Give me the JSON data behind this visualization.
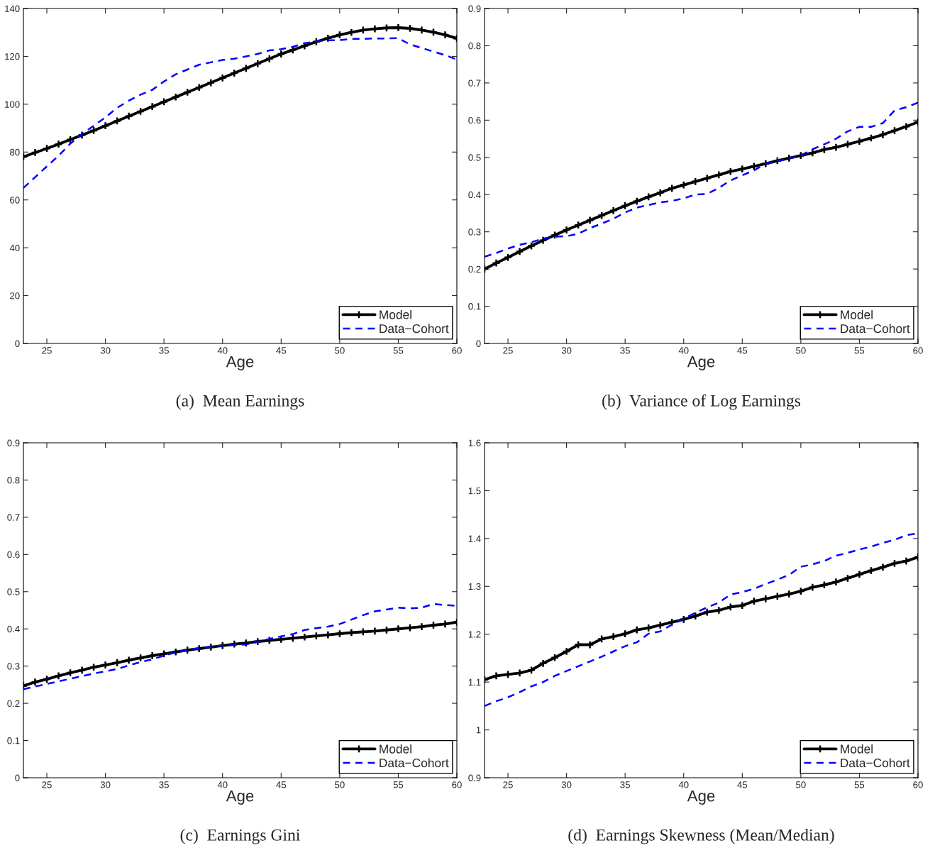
{
  "chart_data": [
    {
      "type": "line",
      "title": "(a)  Mean Earnings",
      "xlabel": "Age",
      "x": [
        23,
        24,
        25,
        26,
        27,
        28,
        29,
        30,
        31,
        32,
        33,
        34,
        35,
        36,
        37,
        38,
        39,
        40,
        41,
        42,
        43,
        44,
        45,
        46,
        47,
        48,
        49,
        50,
        51,
        52,
        53,
        54,
        55,
        56,
        57,
        58,
        59,
        60
      ],
      "xlim": [
        23,
        60
      ],
      "xticks": [
        25,
        30,
        35,
        40,
        45,
        50,
        55,
        60
      ],
      "ylim": [
        0,
        140
      ],
      "yticks": [
        0,
        20,
        40,
        60,
        80,
        100,
        120,
        140
      ],
      "legend": "bottom right",
      "grid": false,
      "series": [
        {
          "name": "Model",
          "color": "#000000",
          "marker": "cross",
          "line_style": "solid",
          "values": [
            78,
            79.8,
            81.5,
            83.3,
            85.2,
            87.1,
            89,
            91,
            93,
            95,
            97,
            99,
            101,
            103,
            105,
            107,
            109,
            111,
            113,
            115,
            117,
            119,
            121,
            122.7,
            124.4,
            126.1,
            127.6,
            129,
            130,
            131,
            131.5,
            131.9,
            132,
            131.7,
            131,
            130.1,
            129,
            127.5
          ]
        },
        {
          "name": "Data−Cohort",
          "color": "#0000ff",
          "marker": "none",
          "line_style": "dashed",
          "values": [
            65,
            69.5,
            74,
            78.5,
            83.5,
            87.5,
            91,
            94.5,
            98.5,
            101.5,
            104,
            106,
            109.5,
            112.5,
            114.5,
            116.5,
            117.5,
            118.5,
            119,
            120,
            121,
            122.5,
            123,
            124,
            125.5,
            126.3,
            126.7,
            126.8,
            127.3,
            127.3,
            127.5,
            127.5,
            127.6,
            125,
            123.5,
            122,
            120.5,
            118.7
          ]
        }
      ]
    },
    {
      "type": "line",
      "title": "(b)  Variance of Log Earnings",
      "xlabel": "Age",
      "x": [
        23,
        24,
        25,
        26,
        27,
        28,
        29,
        30,
        31,
        32,
        33,
        34,
        35,
        36,
        37,
        38,
        39,
        40,
        41,
        42,
        43,
        44,
        45,
        46,
        47,
        48,
        49,
        50,
        51,
        52,
        53,
        54,
        55,
        56,
        57,
        58,
        59,
        60
      ],
      "xlim": [
        23,
        60
      ],
      "xticks": [
        25,
        30,
        35,
        40,
        45,
        50,
        55,
        60
      ],
      "ylim": [
        0,
        0.9
      ],
      "yticks": [
        0,
        0.1,
        0.2,
        0.3,
        0.4,
        0.5,
        0.6,
        0.7,
        0.8,
        0.9
      ],
      "legend": "bottom right",
      "grid": false,
      "series": [
        {
          "name": "Model",
          "color": "#000000",
          "marker": "cross",
          "line_style": "solid",
          "values": [
            0.2,
            0.216,
            0.231,
            0.247,
            0.262,
            0.277,
            0.291,
            0.305,
            0.318,
            0.331,
            0.344,
            0.357,
            0.37,
            0.382,
            0.394,
            0.405,
            0.417,
            0.426,
            0.435,
            0.444,
            0.453,
            0.462,
            0.469,
            0.476,
            0.483,
            0.491,
            0.498,
            0.505,
            0.512,
            0.521,
            0.527,
            0.535,
            0.543,
            0.552,
            0.561,
            0.572,
            0.583,
            0.595
          ]
        },
        {
          "name": "Data−Cohort",
          "color": "#0000ff",
          "marker": "none",
          "line_style": "dashed",
          "values": [
            0.233,
            0.243,
            0.255,
            0.265,
            0.272,
            0.282,
            0.287,
            0.288,
            0.295,
            0.31,
            0.322,
            0.335,
            0.352,
            0.365,
            0.372,
            0.379,
            0.383,
            0.39,
            0.4,
            0.402,
            0.418,
            0.438,
            0.452,
            0.465,
            0.483,
            0.49,
            0.497,
            0.505,
            0.522,
            0.535,
            0.55,
            0.57,
            0.582,
            0.582,
            0.592,
            0.626,
            0.635,
            0.647
          ]
        }
      ]
    },
    {
      "type": "line",
      "title": "(c)  Earnings Gini",
      "xlabel": "Age",
      "x": [
        23,
        24,
        25,
        26,
        27,
        28,
        29,
        30,
        31,
        32,
        33,
        34,
        35,
        36,
        37,
        38,
        39,
        40,
        41,
        42,
        43,
        44,
        45,
        46,
        47,
        48,
        49,
        50,
        51,
        52,
        53,
        54,
        55,
        56,
        57,
        58,
        59,
        60
      ],
      "xlim": [
        23,
        60
      ],
      "xticks": [
        25,
        30,
        35,
        40,
        45,
        50,
        55,
        60
      ],
      "ylim": [
        0,
        0.9
      ],
      "yticks": [
        0,
        0.1,
        0.2,
        0.3,
        0.4,
        0.5,
        0.6,
        0.7,
        0.8,
        0.9
      ],
      "legend": "bottom right",
      "grid": false,
      "series": [
        {
          "name": "Model",
          "color": "#000000",
          "marker": "cross",
          "line_style": "solid",
          "values": [
            0.247,
            0.257,
            0.265,
            0.274,
            0.282,
            0.289,
            0.297,
            0.303,
            0.309,
            0.316,
            0.322,
            0.328,
            0.333,
            0.338,
            0.343,
            0.347,
            0.351,
            0.355,
            0.359,
            0.362,
            0.366,
            0.369,
            0.372,
            0.375,
            0.378,
            0.381,
            0.384,
            0.387,
            0.39,
            0.392,
            0.394,
            0.397,
            0.4,
            0.403,
            0.406,
            0.41,
            0.413,
            0.418
          ]
        },
        {
          "name": "Data−Cohort",
          "color": "#0000ff",
          "marker": "none",
          "line_style": "dashed",
          "values": [
            0.238,
            0.245,
            0.252,
            0.259,
            0.266,
            0.273,
            0.28,
            0.286,
            0.292,
            0.302,
            0.311,
            0.318,
            0.328,
            0.337,
            0.343,
            0.348,
            0.352,
            0.355,
            0.357,
            0.358,
            0.365,
            0.373,
            0.38,
            0.386,
            0.397,
            0.402,
            0.406,
            0.413,
            0.425,
            0.437,
            0.447,
            0.452,
            0.457,
            0.455,
            0.457,
            0.467,
            0.464,
            0.462
          ]
        }
      ]
    },
    {
      "type": "line",
      "title": "(d)  Earnings Skewness (Mean/Median)",
      "xlabel": "Age",
      "x": [
        23,
        24,
        25,
        26,
        27,
        28,
        29,
        30,
        31,
        32,
        33,
        34,
        35,
        36,
        37,
        38,
        39,
        40,
        41,
        42,
        43,
        44,
        45,
        46,
        47,
        48,
        49,
        50,
        51,
        52,
        53,
        54,
        55,
        56,
        57,
        58,
        59,
        60
      ],
      "xlim": [
        23,
        60
      ],
      "xticks": [
        25,
        30,
        35,
        40,
        45,
        50,
        55,
        60
      ],
      "ylim": [
        0.9,
        1.6
      ],
      "yticks": [
        0.9,
        1,
        1.1,
        1.2,
        1.3,
        1.4,
        1.5,
        1.6
      ],
      "legend": "bottom right",
      "grid": false,
      "series": [
        {
          "name": "Model",
          "color": "#000000",
          "marker": "cross",
          "line_style": "solid",
          "values": [
            1.105,
            1.113,
            1.116,
            1.119,
            1.125,
            1.139,
            1.151,
            1.164,
            1.178,
            1.178,
            1.19,
            1.195,
            1.201,
            1.209,
            1.213,
            1.219,
            1.225,
            1.231,
            1.238,
            1.246,
            1.25,
            1.257,
            1.26,
            1.269,
            1.274,
            1.279,
            1.284,
            1.29,
            1.298,
            1.303,
            1.309,
            1.317,
            1.325,
            1.333,
            1.34,
            1.348,
            1.353,
            1.361
          ]
        },
        {
          "name": "Data−Cohort",
          "color": "#0000ff",
          "marker": "none",
          "line_style": "dashed",
          "values": [
            1.05,
            1.06,
            1.068,
            1.079,
            1.091,
            1.1,
            1.113,
            1.123,
            1.133,
            1.143,
            1.153,
            1.164,
            1.175,
            1.183,
            1.201,
            1.206,
            1.22,
            1.232,
            1.245,
            1.256,
            1.266,
            1.283,
            1.288,
            1.295,
            1.305,
            1.314,
            1.324,
            1.341,
            1.346,
            1.353,
            1.364,
            1.37,
            1.377,
            1.383,
            1.391,
            1.397,
            1.407,
            1.411
          ]
        }
      ]
    }
  ]
}
